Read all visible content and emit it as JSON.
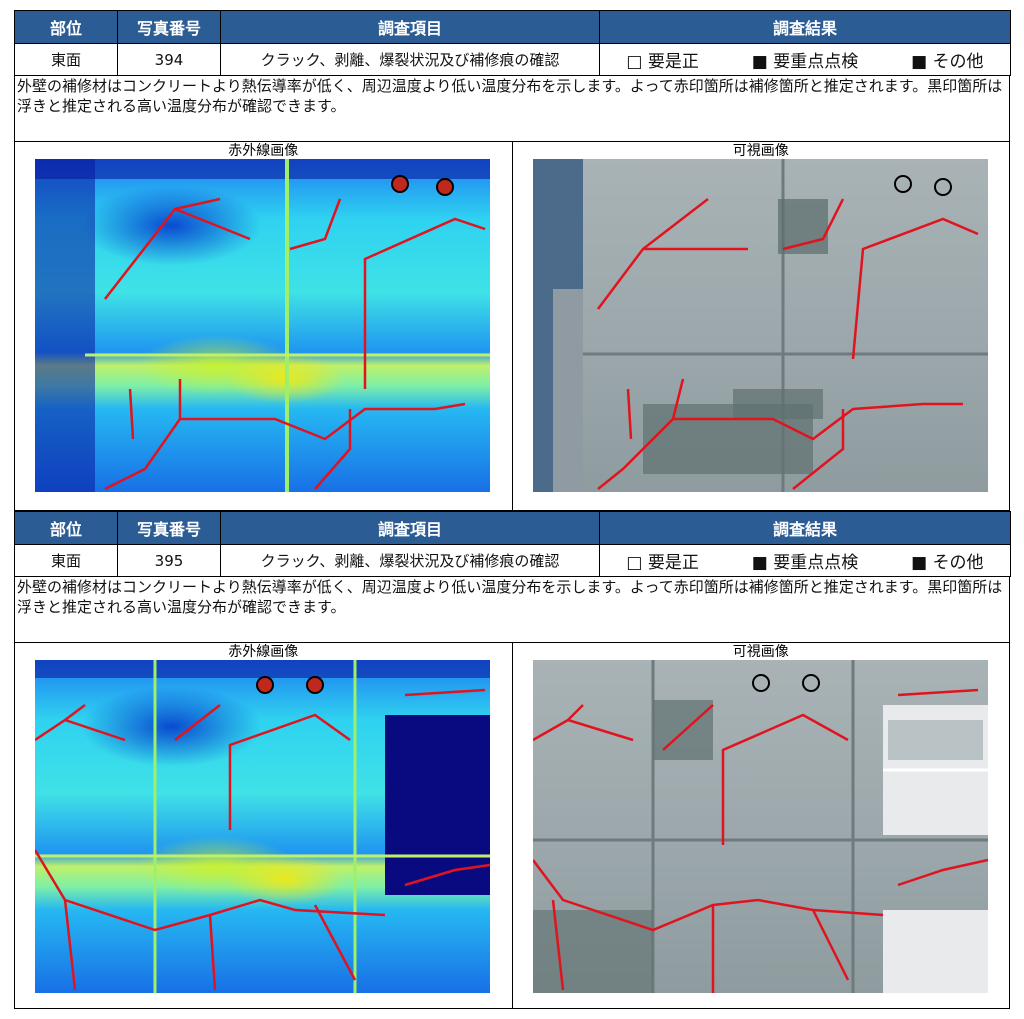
{
  "headers": {
    "part": "部位",
    "photo_no": "写真番号",
    "item": "調査項目",
    "result": "調査結果"
  },
  "records": [
    {
      "part": "東面",
      "photo_no": "394",
      "item": "クラック、剥離、爆裂状況及び補修痕の確認",
      "options": [
        "□ 要是正",
        "■ 要重点点検",
        "■ その他"
      ],
      "note": "外壁の補修材はコンクリートより熱伝導率が低く、周辺温度より低い温度分布を示します。よって赤印箇所は補修箇所と推定されます。黒印箇所は浮きと推定される高い温度分布が確認できます。",
      "ir_caption": "赤外線画像",
      "visible_caption": "可視画像"
    },
    {
      "part": "東面",
      "photo_no": "395",
      "item": "クラック、剥離、爆裂状況及び補修痕の確認",
      "options": [
        "□ 要是正",
        "■ 要重点点検",
        "■ その他"
      ],
      "note": "外壁の補修材はコンクリートより熱伝導率が低く、周辺温度より低い温度分布を示します。よって赤印箇所は補修箇所と推定されます。黒印箇所は浮きと推定される高い温度分布が確認できます。",
      "ir_caption": "赤外線画像",
      "visible_caption": "可視画像"
    }
  ],
  "colors": {
    "header_bg": "#2b5c93",
    "crack_line": "#e0141e",
    "float_mark": "#000000"
  }
}
